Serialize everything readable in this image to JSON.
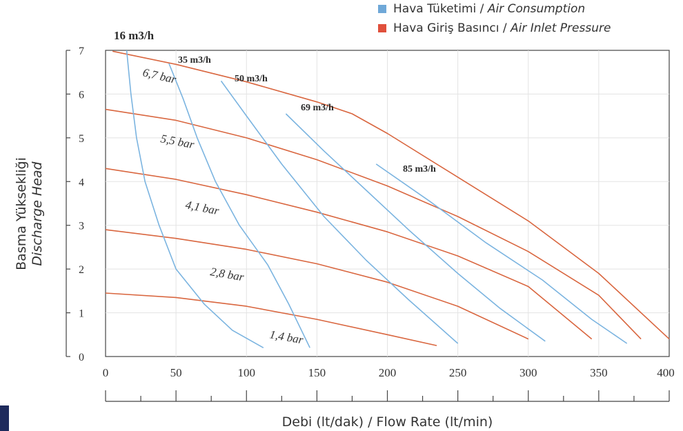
{
  "chart_data": {
    "type": "line",
    "xlabel": "Debi (lt/dak) / Flow Rate (lt/min)",
    "ylabel_top": "Basma Yüksekliği",
    "ylabel_bottom": "Discharge Head",
    "xlim": [
      0,
      400
    ],
    "ylim": [
      0,
      7
    ],
    "x_ticks": [
      "0",
      "50",
      "100",
      "150",
      "200",
      "250",
      "300",
      "350",
      "400"
    ],
    "y_ticks": [
      "0",
      "1",
      "2",
      "3",
      "4",
      "5",
      "6",
      "7"
    ],
    "grid": true,
    "legend": {
      "position": "top-right",
      "items": [
        {
          "label_tr": "Hava Tüketimi / ",
          "label_en": "Air Consumption",
          "color": "#6fa8d8"
        },
        {
          "label_tr": "Hava Giriş Basıncı / ",
          "label_en": "Air Inlet Pressure",
          "color": "#e0503c"
        }
      ]
    },
    "pressure_series": [
      {
        "name": "6,7 bar",
        "color": "#d9663f",
        "points": [
          [
            5,
            6.98
          ],
          [
            50,
            6.68
          ],
          [
            100,
            6.28
          ],
          [
            150,
            5.82
          ],
          [
            175,
            5.55
          ],
          [
            200,
            5.1
          ],
          [
            250,
            4.1
          ],
          [
            300,
            3.1
          ],
          [
            350,
            1.9
          ],
          [
            400,
            0.4
          ]
        ]
      },
      {
        "name": "5,5 bar",
        "color": "#d9663f",
        "points": [
          [
            0,
            5.65
          ],
          [
            50,
            5.4
          ],
          [
            100,
            5.0
          ],
          [
            150,
            4.5
          ],
          [
            200,
            3.9
          ],
          [
            250,
            3.2
          ],
          [
            300,
            2.4
          ],
          [
            350,
            1.4
          ],
          [
            380,
            0.4
          ]
        ]
      },
      {
        "name": "4,1 bar",
        "color": "#d9663f",
        "points": [
          [
            0,
            4.3
          ],
          [
            50,
            4.05
          ],
          [
            100,
            3.7
          ],
          [
            150,
            3.3
          ],
          [
            200,
            2.85
          ],
          [
            250,
            2.3
          ],
          [
            300,
            1.6
          ],
          [
            345,
            0.4
          ]
        ]
      },
      {
        "name": "2,8 bar",
        "color": "#d9663f",
        "points": [
          [
            0,
            2.9
          ],
          [
            50,
            2.7
          ],
          [
            100,
            2.45
          ],
          [
            150,
            2.12
          ],
          [
            200,
            1.7
          ],
          [
            250,
            1.15
          ],
          [
            300,
            0.4
          ]
        ]
      },
      {
        "name": "1,4 bar",
        "color": "#d9663f",
        "points": [
          [
            0,
            1.45
          ],
          [
            50,
            1.35
          ],
          [
            100,
            1.15
          ],
          [
            150,
            0.85
          ],
          [
            200,
            0.5
          ],
          [
            235,
            0.25
          ]
        ]
      }
    ],
    "air_series": [
      {
        "name": "16 m3/h",
        "color": "#7bb4e0",
        "points": [
          [
            15,
            7.0
          ],
          [
            18,
            6.0
          ],
          [
            22,
            5.0
          ],
          [
            28,
            4.0
          ],
          [
            38,
            3.0
          ],
          [
            50,
            2.0
          ],
          [
            70,
            1.2
          ],
          [
            90,
            0.6
          ],
          [
            112,
            0.2
          ]
        ]
      },
      {
        "name": "35 m3/h",
        "color": "#7bb4e0",
        "points": [
          [
            45,
            6.7
          ],
          [
            55,
            5.9
          ],
          [
            65,
            5.0
          ],
          [
            78,
            4.0
          ],
          [
            95,
            3.0
          ],
          [
            115,
            2.1
          ],
          [
            130,
            1.2
          ],
          [
            145,
            0.2
          ]
        ]
      },
      {
        "name": "50 m3/h",
        "color": "#7bb4e0",
        "points": [
          [
            82,
            6.3
          ],
          [
            100,
            5.5
          ],
          [
            125,
            4.4
          ],
          [
            155,
            3.2
          ],
          [
            185,
            2.2
          ],
          [
            215,
            1.3
          ],
          [
            250,
            0.3
          ]
        ]
      },
      {
        "name": "69 m3/h",
        "color": "#7bb4e0",
        "points": [
          [
            128,
            5.55
          ],
          [
            155,
            4.7
          ],
          [
            185,
            3.8
          ],
          [
            215,
            2.9
          ],
          [
            250,
            1.9
          ],
          [
            280,
            1.1
          ],
          [
            312,
            0.35
          ]
        ]
      },
      {
        "name": "85 m3/h",
        "color": "#7bb4e0",
        "points": [
          [
            192,
            4.4
          ],
          [
            230,
            3.55
          ],
          [
            270,
            2.6
          ],
          [
            310,
            1.75
          ],
          [
            345,
            0.85
          ],
          [
            370,
            0.3
          ]
        ]
      }
    ],
    "series_labels": [
      {
        "text": "16 m3/h",
        "style": "bold-serif"
      },
      {
        "text": "35 m3/h",
        "style": "bold-serif"
      },
      {
        "text": "50 m3/h",
        "style": "bold-serif"
      },
      {
        "text": "69 m3/h",
        "style": "bold-serif"
      },
      {
        "text": "85 m3/h",
        "style": "bold-serif"
      },
      {
        "text": "6,7 bar",
        "style": "italic-serif"
      },
      {
        "text": "5,5 bar",
        "style": "italic-serif"
      },
      {
        "text": "4,1 bar",
        "style": "italic-serif"
      },
      {
        "text": "2,8 bar",
        "style": "italic-serif"
      },
      {
        "text": "1,4 bar",
        "style": "italic-serif"
      }
    ]
  }
}
